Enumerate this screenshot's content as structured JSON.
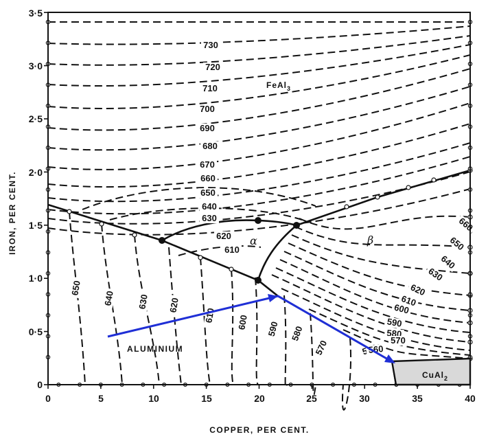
{
  "axes": {
    "x_label": "COPPER, PER CENT.",
    "y_label": "IRON, PER CENT.",
    "x_ticks": [
      "0",
      "5",
      "10",
      "15",
      "20",
      "25",
      "30",
      "35",
      "40"
    ],
    "y_ticks": [
      "0",
      "0·5",
      "1·0",
      "1·5",
      "2·0",
      "2·5",
      "3·0",
      "3·5"
    ]
  },
  "regions": {
    "feal3": "FeAl",
    "feal3_sub": "3",
    "cual2": "CuAl",
    "cual2_sub": "2",
    "aluminium": "ALUMINIUM",
    "alpha": "α",
    "beta": "β"
  },
  "isotherms": {
    "feal3": [
      "730",
      "720",
      "710",
      "700",
      "690",
      "680",
      "670",
      "660",
      "650",
      "640",
      "630",
      "620",
      "610"
    ],
    "aluminium": [
      "650",
      "640",
      "630",
      "620",
      "610",
      "600",
      "590",
      "580",
      "570",
      "560"
    ],
    "beta": [
      "660",
      "650",
      "640",
      "630",
      "620",
      "610",
      "600",
      "590",
      "580",
      "570",
      "560"
    ]
  },
  "colors": {
    "ink": "#111111",
    "arrow": "#1f2fd6",
    "cual2_fill": "#d9d9d9"
  }
}
